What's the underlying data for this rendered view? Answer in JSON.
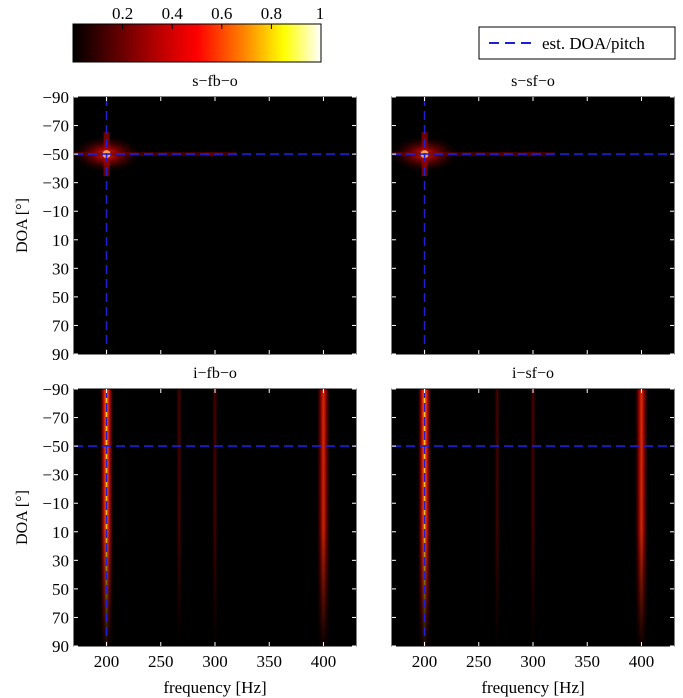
{
  "colorbar": {
    "ticks": [
      "0.2",
      "0.4",
      "0.6",
      "0.8",
      "1"
    ],
    "tick_values": [
      0.2,
      0.4,
      0.6,
      0.8,
      1.0
    ],
    "range": [
      0,
      1
    ],
    "colormap": "hot"
  },
  "legend": {
    "label": "est. DOA/pitch",
    "color": "#1f1fd6",
    "style": "dashed"
  },
  "chart_data": [
    {
      "type": "heatmap",
      "title": "s−fb−o",
      "xlabel": "",
      "ylabel": "DOA [°]",
      "xlim": [
        170,
        430
      ],
      "ylim": [
        -90,
        90
      ],
      "y_inverted": true,
      "x_ticks": [],
      "y_ticks": [
        "−90",
        "−70",
        "−50",
        "−30",
        "−10",
        "10",
        "30",
        "50",
        "70",
        "90"
      ],
      "estimate": {
        "frequency": 200,
        "doa": -50
      },
      "peaks": [
        {
          "frequency": 200,
          "doa": -50,
          "intensity": 0.55
        },
        {
          "frequency": 295,
          "doa": -50,
          "intensity": 0.15
        }
      ],
      "shape": "spot"
    },
    {
      "type": "heatmap",
      "title": "s−sf−o",
      "xlabel": "",
      "ylabel": "",
      "xlim": [
        170,
        430
      ],
      "ylim": [
        -90,
        90
      ],
      "y_inverted": true,
      "x_ticks": [],
      "y_ticks": [],
      "estimate": {
        "frequency": 200,
        "doa": -50
      },
      "peaks": [
        {
          "frequency": 200,
          "doa": -50,
          "intensity": 0.5
        },
        {
          "frequency": 275,
          "doa": -50,
          "intensity": 0.12
        },
        {
          "frequency": 300,
          "doa": -50,
          "intensity": 0.12
        }
      ],
      "shape": "spot"
    },
    {
      "type": "heatmap",
      "title": "i−fb−o",
      "xlabel": "frequency [Hz]",
      "ylabel": "DOA [°]",
      "xlim": [
        170,
        430
      ],
      "ylim": [
        -90,
        90
      ],
      "y_inverted": true,
      "x_ticks": [
        "200",
        "250",
        "300",
        "350",
        "400"
      ],
      "y_ticks": [
        "−90",
        "−70",
        "−50",
        "−30",
        "−10",
        "10",
        "30",
        "50",
        "70",
        "90"
      ],
      "estimate": {
        "frequency": 200,
        "doa": -50
      },
      "peaks": [
        {
          "frequency": 200,
          "doa": -50,
          "intensity": 1.0
        },
        {
          "frequency": 267,
          "doa": -50,
          "intensity": 0.35
        },
        {
          "frequency": 300,
          "doa": -50,
          "intensity": 0.35
        },
        {
          "frequency": 400,
          "doa": -50,
          "intensity": 0.8
        }
      ],
      "shape": "stripe"
    },
    {
      "type": "heatmap",
      "title": "i−sf−o",
      "xlabel": "frequency [Hz]",
      "ylabel": "",
      "xlim": [
        170,
        430
      ],
      "ylim": [
        -90,
        90
      ],
      "y_inverted": true,
      "x_ticks": [
        "200",
        "250",
        "300",
        "350",
        "400"
      ],
      "y_ticks": [],
      "estimate": {
        "frequency": 200,
        "doa": -50
      },
      "peaks": [
        {
          "frequency": 200,
          "doa": -50,
          "intensity": 1.0
        },
        {
          "frequency": 267,
          "doa": -50,
          "intensity": 0.35
        },
        {
          "frequency": 300,
          "doa": -50,
          "intensity": 0.35
        },
        {
          "frequency": 400,
          "doa": -50,
          "intensity": 0.85
        }
      ],
      "shape": "stripe"
    }
  ]
}
